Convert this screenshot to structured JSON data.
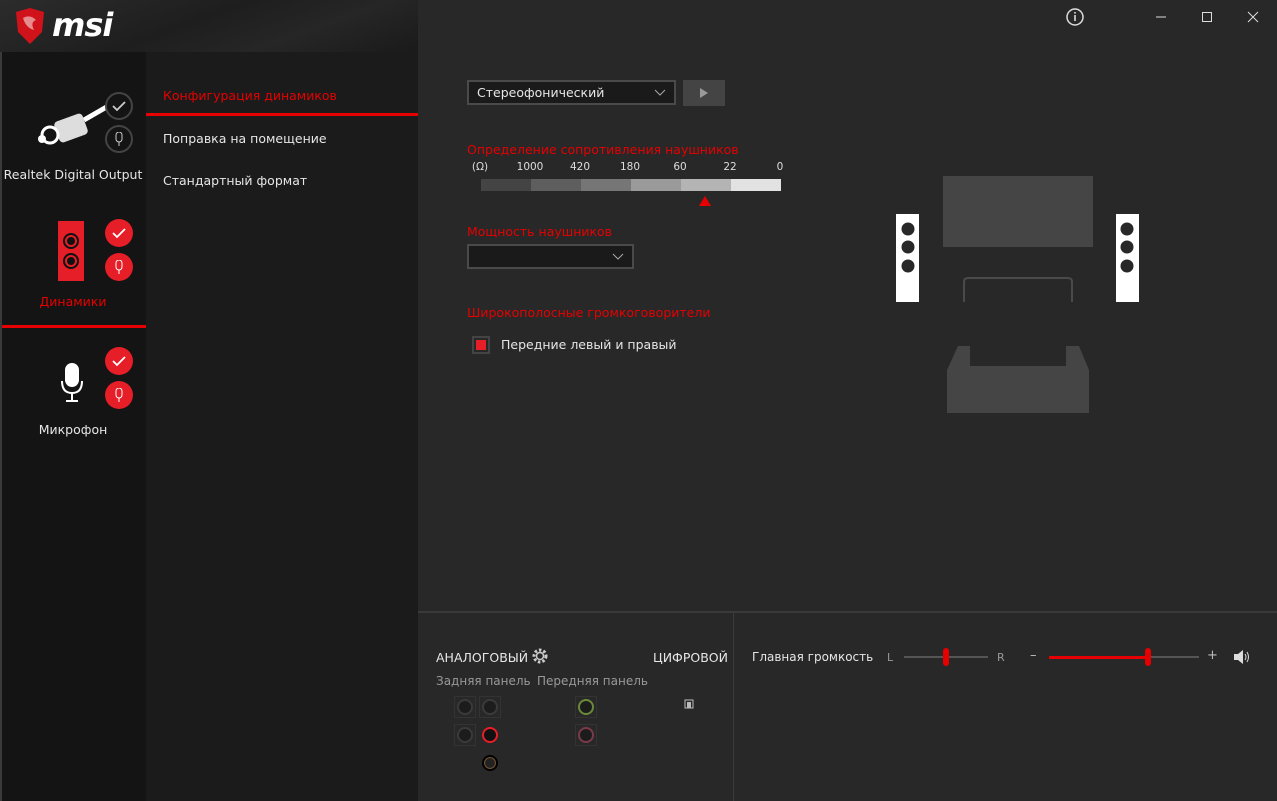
{
  "app": {
    "brand": "msi"
  },
  "window_controls": {
    "info_icon": "info-circle-icon",
    "minimize": "minimize-icon",
    "maximize": "maximize-icon",
    "close": "close-icon"
  },
  "devices": [
    {
      "label": "Realtek Digital Output",
      "icon": "digital-cable-icon",
      "active": false
    },
    {
      "label": "Динамики",
      "icon": "speaker-icon",
      "active": true
    },
    {
      "label": "Микрофон",
      "icon": "microphone-icon",
      "active": false
    }
  ],
  "menu": {
    "items": [
      {
        "label": "Конфигурация динамиков",
        "active": true
      },
      {
        "label": "Поправка на помещение",
        "active": false
      },
      {
        "label": "Стандартный формат",
        "active": false
      }
    ]
  },
  "config": {
    "speaker_select": "Стереофонический",
    "play_icon": "play-icon",
    "impedance_title": "Определение сопротивления наушников",
    "impedance_ticks": [
      "(Ω)",
      "1000",
      "420",
      "180",
      "60",
      "22",
      "0"
    ],
    "impedance_marker": "between 60 and 22",
    "power_title": "Мощность наушников",
    "power_select": "",
    "fullrange_title": "Широкополосные громкоговорители",
    "fullrange_option": "Передние левый и правый",
    "fullrange_checked": true
  },
  "bottom": {
    "analog": "АНАЛОГОВЫЙ",
    "digital": "ЦИФРОВОЙ",
    "rear_panel": "Задняя панель",
    "front_panel": "Передняя панель",
    "master_volume": "Главная громкость",
    "left": "L",
    "right": "R",
    "minus": "–",
    "plus": "+",
    "balance_percent": 50,
    "volume_percent": 66
  },
  "colors": {
    "accent": "#e60000",
    "bg": "#282828",
    "sidebar": "#141414"
  }
}
